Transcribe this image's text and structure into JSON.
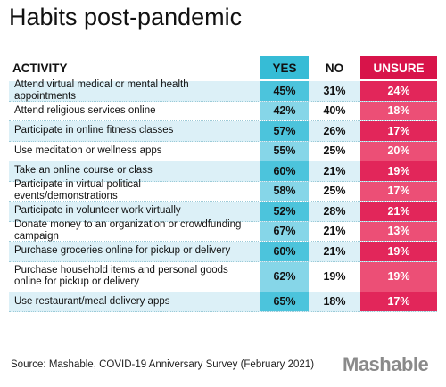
{
  "title": "Habits post-pandemic",
  "table": {
    "header": [
      "ACTIVITY",
      "YES",
      "NO",
      "UNSURE"
    ],
    "rows": [
      [
        "Attend virtual medical or mental health appointments",
        "45%",
        "31%",
        "24%"
      ],
      [
        "Attend religious services online",
        "42%",
        "40%",
        "18%"
      ],
      [
        "Participate in online fitness classes",
        "57%",
        "26%",
        "17%"
      ],
      [
        "Use meditation or wellness apps",
        "55%",
        "25%",
        "20%"
      ],
      [
        "Take an online course or class",
        "60%",
        "21%",
        "19%"
      ],
      [
        "Participate in virtual political events/demonstrations",
        "58%",
        "25%",
        "17%"
      ],
      [
        "Participate in volunteer work virtually",
        "52%",
        "28%",
        "21%"
      ],
      [
        "Donate money to an organization or crowdfunding campaign",
        "67%",
        "21%",
        "13%"
      ],
      [
        "Purchase groceries online for pickup or delivery",
        "60%",
        "21%",
        "19%"
      ],
      [
        "Purchase household items and personal goods online for pickup or delivery",
        "62%",
        "19%",
        "19%"
      ],
      [
        "Use restaurant/meal delivery apps",
        "65%",
        "18%",
        "17%"
      ]
    ]
  },
  "source": "Source: Mashable, COVID-19 Anniversary Survey (February 2021)",
  "brand": "Mashable"
}
